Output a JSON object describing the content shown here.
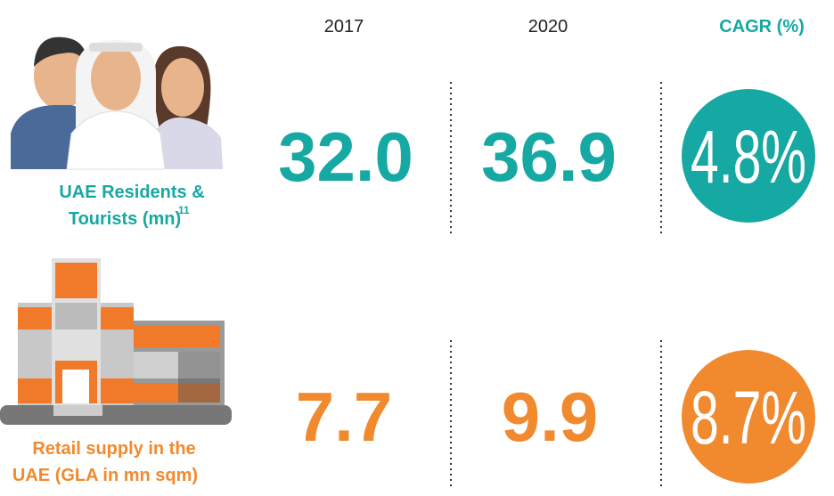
{
  "header": {
    "columns": [
      "2017",
      "2020",
      "CAGR (%)"
    ]
  },
  "rows": [
    {
      "label_lines": [
        "UAE Residents &",
        "Tourists (mn)"
      ],
      "footnote": "11",
      "values": [
        "32.0",
        "36.9",
        "4.8%"
      ]
    },
    {
      "label_lines": [
        "Retail supply in the",
        "UAE (GLA in mn sqm)"
      ],
      "values": [
        "7.7",
        "9.9",
        "8.7%"
      ]
    }
  ]
}
